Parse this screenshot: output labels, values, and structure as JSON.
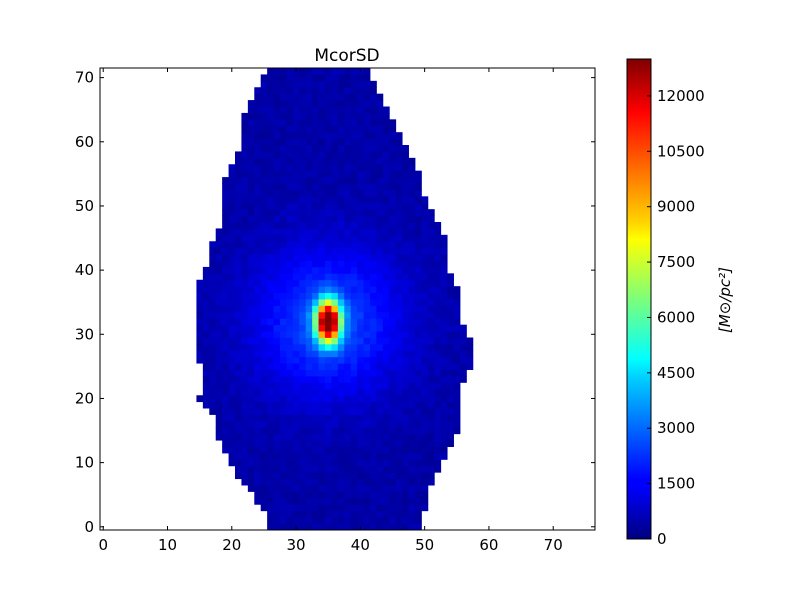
{
  "chart_data": {
    "type": "heatmap",
    "title": "McorSD",
    "xlabel": "",
    "ylabel": "",
    "xlim": [
      -0.5,
      76.5
    ],
    "ylim": [
      -0.5,
      71.5
    ],
    "x_ticks": [
      0,
      10,
      20,
      30,
      40,
      50,
      60,
      70
    ],
    "y_ticks": [
      0,
      10,
      20,
      30,
      40,
      50,
      60,
      70
    ],
    "colormap": "jet",
    "colorbar": {
      "label": "[M⊙/pc²]",
      "range": [
        0,
        13000
      ],
      "ticks": [
        0,
        1500,
        3000,
        4500,
        6000,
        7500,
        9000,
        10500,
        12000
      ]
    },
    "grid": false,
    "footprint_rows": [
      {
        "y": 0,
        "x_start": 26,
        "x_end": 49
      },
      {
        "y": 2,
        "x_start": 26,
        "x_end": 49
      },
      {
        "y": 4,
        "x_start": 24,
        "x_end": 50
      },
      {
        "y": 6,
        "x_start": 23,
        "x_end": 50
      },
      {
        "y": 8,
        "x_start": 21,
        "x_end": 51
      },
      {
        "y": 10,
        "x_start": 20,
        "x_end": 52
      },
      {
        "y": 12,
        "x_start": 19,
        "x_end": 53
      },
      {
        "y": 14,
        "x_start": 18,
        "x_end": 54
      },
      {
        "y": 16,
        "x_start": 18,
        "x_end": 55
      },
      {
        "y": 18,
        "x_start": 17,
        "x_end": 55
      },
      {
        "y": 20,
        "x_start": 15,
        "x_end": 55
      },
      {
        "y": 22,
        "x_start": 16,
        "x_end": 55
      },
      {
        "y": 24,
        "x_start": 16,
        "x_end": 56
      },
      {
        "y": 26,
        "x_start": 15,
        "x_end": 57
      },
      {
        "y": 28,
        "x_start": 15,
        "x_end": 57
      },
      {
        "y": 30,
        "x_start": 15,
        "x_end": 56
      },
      {
        "y": 32,
        "x_start": 15,
        "x_end": 55
      },
      {
        "y": 34,
        "x_start": 15,
        "x_end": 55
      },
      {
        "y": 36,
        "x_start": 15,
        "x_end": 55
      },
      {
        "y": 38,
        "x_start": 15,
        "x_end": 54
      },
      {
        "y": 40,
        "x_start": 16,
        "x_end": 53
      },
      {
        "y": 42,
        "x_start": 17,
        "x_end": 53
      },
      {
        "y": 44,
        "x_start": 17,
        "x_end": 53
      },
      {
        "y": 46,
        "x_start": 18,
        "x_end": 52
      },
      {
        "y": 48,
        "x_start": 19,
        "x_end": 51
      },
      {
        "y": 50,
        "x_start": 19,
        "x_end": 50
      },
      {
        "y": 52,
        "x_start": 19,
        "x_end": 49
      },
      {
        "y": 54,
        "x_start": 19,
        "x_end": 49
      },
      {
        "y": 56,
        "x_start": 20,
        "x_end": 48
      },
      {
        "y": 58,
        "x_start": 21,
        "x_end": 47
      },
      {
        "y": 60,
        "x_start": 22,
        "x_end": 46
      },
      {
        "y": 62,
        "x_start": 22,
        "x_end": 45
      },
      {
        "y": 64,
        "x_start": 22,
        "x_end": 44
      },
      {
        "y": 66,
        "x_start": 23,
        "x_end": 43
      },
      {
        "y": 68,
        "x_start": 24,
        "x_end": 42
      },
      {
        "y": 70,
        "x_start": 25,
        "x_end": 41
      },
      {
        "y": 71,
        "x_start": 26,
        "x_end": 41
      }
    ],
    "peak": {
      "x": 35,
      "y": 32,
      "value": 13000
    },
    "core_profile": {
      "sigma_x": 1.3,
      "sigma_y": 2.2,
      "halo_amplitude": 2200,
      "halo_sigma": 8,
      "background": 500
    }
  }
}
